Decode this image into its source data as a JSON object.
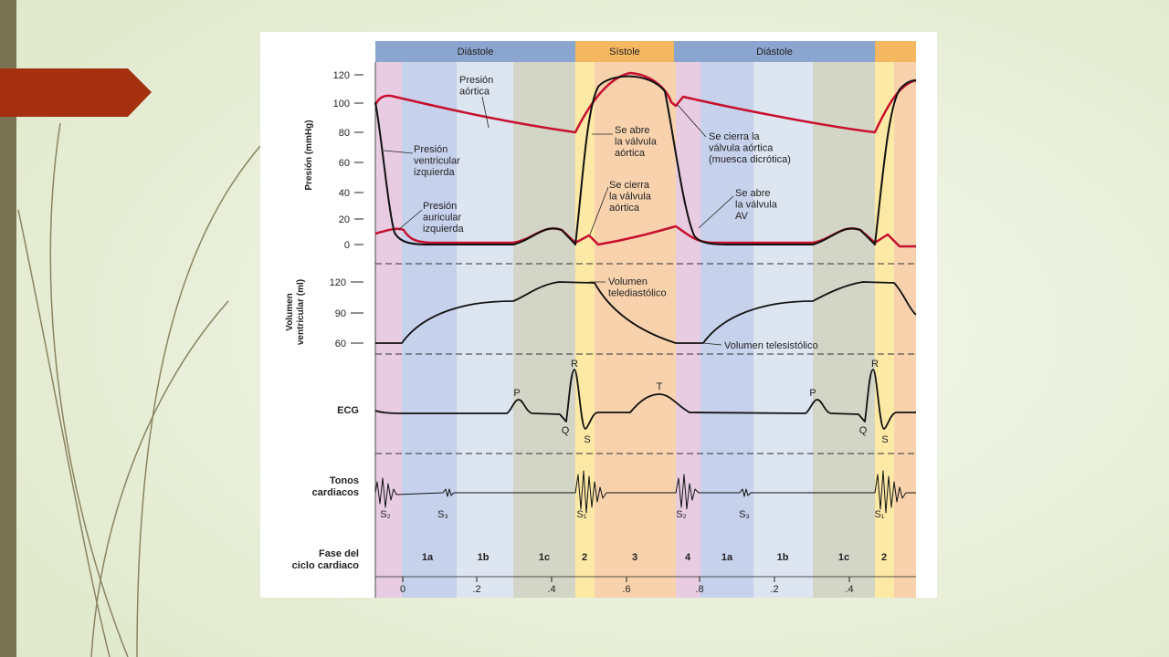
{
  "header_bands": [
    "Diástole",
    "Sístole",
    "Diástole"
  ],
  "axes": {
    "pressure": {
      "label": "Presión (mmHg)",
      "ticks": [
        "120",
        "100",
        "80",
        "60",
        "40",
        "20",
        "0"
      ]
    },
    "volume": {
      "label": [
        "Volumen",
        "ventricular (ml)"
      ],
      "ticks": [
        "120",
        "90",
        "60"
      ]
    },
    "time_ticks": [
      "0",
      ".2",
      ".4",
      ".6",
      ".8",
      ".2",
      ".4"
    ]
  },
  "row_labels": {
    "ecg": "ECG",
    "sounds": [
      "Tonos",
      "cardiacos"
    ],
    "phase": [
      "Fase del",
      "ciclo cardiaco"
    ]
  },
  "annotations": [
    {
      "lines": [
        "Presión",
        "aórtica"
      ]
    },
    {
      "lines": [
        "Presión",
        "ventricular",
        "izquierda"
      ]
    },
    {
      "lines": [
        "Presión",
        "auricular",
        "izquierda"
      ]
    },
    {
      "lines": [
        "Se abre",
        "la válvula",
        "aórtica"
      ]
    },
    {
      "lines": [
        "Se cierra",
        "la válvula",
        "aórtica"
      ]
    },
    {
      "lines": [
        "Se cierra la",
        "válvula aórtica",
        "(muesca dicrótica)"
      ]
    },
    {
      "lines": [
        "Se abre",
        "la válvula",
        "AV"
      ]
    },
    {
      "lines": [
        "Volumen",
        "telediastólico"
      ]
    },
    {
      "lines": [
        "Volumen telesistólico"
      ]
    }
  ],
  "ecg_waves": [
    "P",
    "R",
    "Q",
    "S",
    "T",
    "P",
    "R",
    "Q",
    "S"
  ],
  "sounds": [
    "S₂",
    "S₃",
    "S₁",
    "S₂",
    "S₃",
    "S₁"
  ],
  "phases": [
    "1a",
    "1b",
    "1c",
    "2",
    "3",
    "4",
    "1a",
    "1b",
    "1c",
    "2"
  ]
}
